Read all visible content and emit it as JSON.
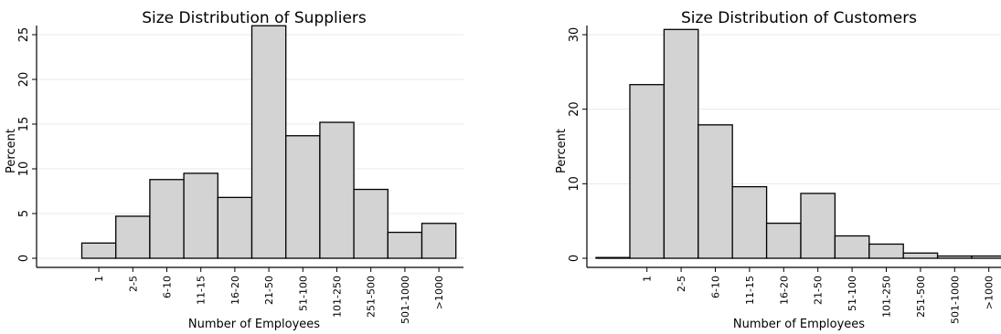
{
  "chart_data": [
    {
      "type": "bar",
      "title": "Size Distribution of Suppliers",
      "xlabel": "Number of Employees",
      "ylabel": "Percent",
      "categories": [
        "1",
        "2-5",
        "6-10",
        "11-15",
        "16-20",
        "21-50",
        "51-100",
        "101-250",
        "251-500",
        "501-1000",
        ">1000"
      ],
      "values": [
        1.7,
        4.7,
        8.8,
        9.5,
        6.8,
        26.0,
        13.7,
        15.2,
        7.7,
        2.9,
        3.9
      ],
      "yticks": [
        0,
        5,
        10,
        15,
        20,
        25
      ],
      "ylim": [
        0,
        27
      ],
      "grid": true,
      "bar_fill": "#d3d3d3",
      "bar_stroke": "#000000",
      "grid_color": "#eaeaea"
    },
    {
      "type": "bar",
      "title": "Size Distribution of Customers",
      "xlabel": "Number of Employees",
      "ylabel": "Percent",
      "categories": [
        "1",
        "2-5",
        "6-10",
        "11-15",
        "16-20",
        "21-50",
        "51-100",
        "101-250",
        "251-500",
        "501-1000",
        ">1000"
      ],
      "values": [
        23.3,
        30.7,
        17.9,
        9.6,
        4.7,
        8.7,
        3.0,
        1.9,
        0.7,
        0.3,
        0.3
      ],
      "lead_bar_value": 0.1,
      "yticks": [
        0,
        10,
        20,
        30
      ],
      "ylim": [
        0,
        32
      ],
      "grid": true,
      "bar_fill": "#d3d3d3",
      "bar_stroke": "#000000",
      "grid_color": "#eaeaea"
    }
  ]
}
